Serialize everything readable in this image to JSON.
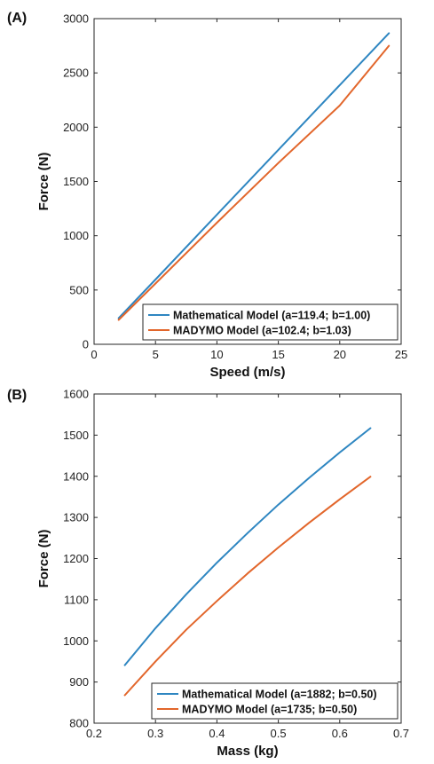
{
  "chart_data": [
    {
      "type": "line",
      "panel_label": "(A)",
      "xlabel": "Speed (m/s)",
      "ylabel": "Force (N)",
      "xlim": [
        0,
        25
      ],
      "ylim": [
        0,
        3000
      ],
      "xticks": [
        0,
        5,
        10,
        15,
        20,
        25
      ],
      "yticks": [
        0,
        500,
        1000,
        1500,
        2000,
        2500,
        3000
      ],
      "grid": false,
      "legend_position": "bottom-right",
      "series": [
        {
          "name": "Mathematical Model (a=119.4; b=1.00)",
          "color": "#2e86c1",
          "x": [
            2,
            5,
            10,
            15,
            20,
            24
          ],
          "y": [
            240,
            597,
            1194,
            1791,
            2388,
            2866
          ]
        },
        {
          "name": "MADYMO Model (a=102.4; b=1.03)",
          "color": "#e2662b",
          "x": [
            2,
            5,
            10,
            15,
            20,
            24
          ],
          "y": [
            225,
            560,
            1120,
            1670,
            2200,
            2750
          ]
        }
      ]
    },
    {
      "type": "line",
      "panel_label": "(B)",
      "xlabel": "Mass (kg)",
      "ylabel": "Force (N)",
      "xlim": [
        0.2,
        0.7
      ],
      "ylim": [
        800,
        1600
      ],
      "xticks": [
        0.2,
        0.3,
        0.4,
        0.5,
        0.6,
        0.7
      ],
      "yticks": [
        800,
        900,
        1000,
        1100,
        1200,
        1300,
        1400,
        1500,
        1600
      ],
      "grid": false,
      "legend_position": "bottom-right",
      "series": [
        {
          "name": "Mathematical Model (a=1882; b=0.50)",
          "color": "#2e86c1",
          "x": [
            0.25,
            0.3,
            0.35,
            0.4,
            0.45,
            0.5,
            0.55,
            0.6,
            0.65
          ],
          "y": [
            941,
            1031,
            1113,
            1190,
            1262,
            1331,
            1396,
            1458,
            1517
          ]
        },
        {
          "name": "MADYMO Model (a=1735; b=0.50)",
          "color": "#e2662b",
          "x": [
            0.25,
            0.3,
            0.35,
            0.4,
            0.45,
            0.5,
            0.55,
            0.6,
            0.65
          ],
          "y": [
            868,
            950,
            1027,
            1097,
            1164,
            1227,
            1287,
            1344,
            1399
          ]
        }
      ]
    }
  ]
}
